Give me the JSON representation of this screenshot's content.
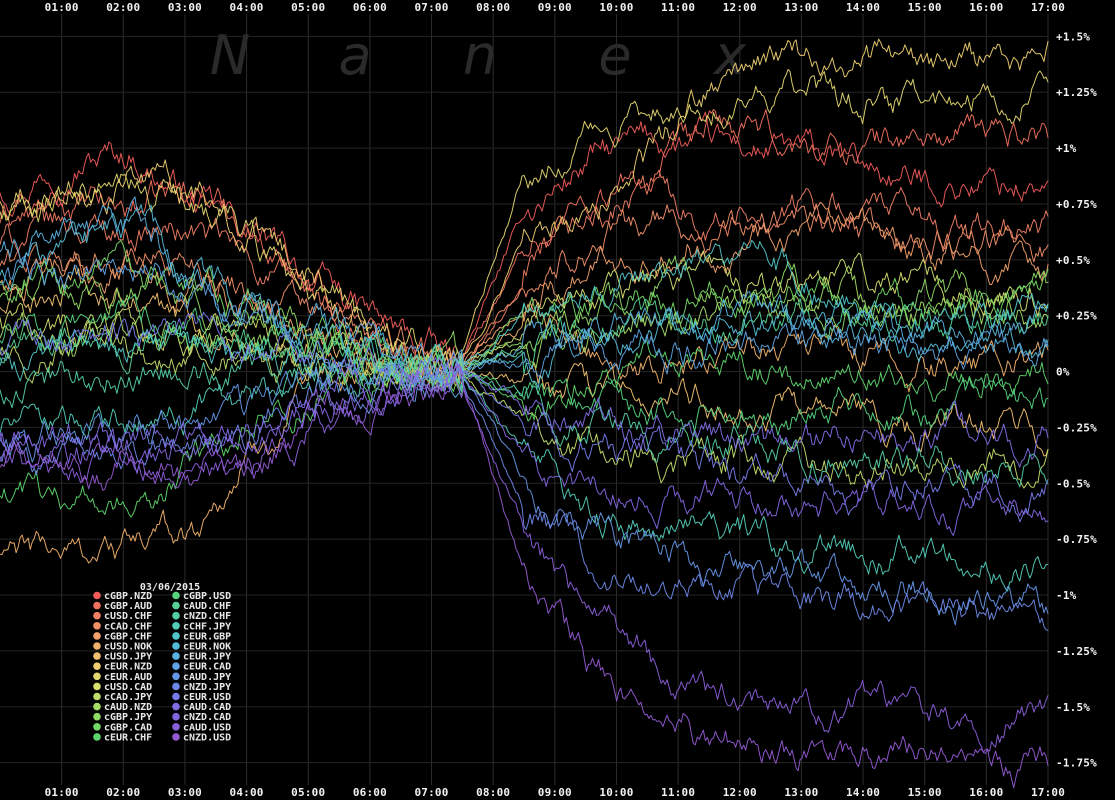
{
  "chart_data": {
    "type": "line",
    "title": "",
    "watermark": "Nanex",
    "date": "03/06/2015",
    "x": [
      "01:00",
      "02:00",
      "03:00",
      "04:00",
      "05:00",
      "06:00",
      "07:00",
      "08:00",
      "09:00",
      "10:00",
      "11:00",
      "12:00",
      "13:00",
      "14:00",
      "15:00",
      "16:00",
      "17:00"
    ],
    "y_ticks": [
      "+1.5%",
      "+1.25%",
      "+1%",
      "+0.75%",
      "+0.5%",
      "+0.25%",
      "0%",
      "-0.25%",
      "-0.5%",
      "-0.75%",
      "-1%",
      "-1.25%",
      "-1.5%",
      "-1.75%"
    ],
    "xlim": [
      "00:00",
      "17:00"
    ],
    "ylim": [
      -1.85,
      1.6
    ],
    "grid": true,
    "legend_placement": "bottom-left",
    "series": [
      {
        "name": "cGBP.NZD",
        "color": "#ef5b5b",
        "values": [
          0.82,
          0.95,
          0.98,
          0.75,
          0.58,
          0.37,
          0.18,
          0.03,
          0.7,
          0.95,
          1.03,
          1.0,
          0.98,
          0.92,
          0.84,
          0.85,
          0.82
        ]
      },
      {
        "name": "cGBP.AUD",
        "color": "#f0705e",
        "values": [
          0.68,
          0.72,
          0.73,
          0.82,
          0.62,
          0.32,
          0.14,
          0.02,
          0.55,
          0.78,
          0.86,
          1.1,
          1.0,
          1.0,
          1.04,
          1.06,
          1.08
        ]
      },
      {
        "name": "cUSD.CHF",
        "color": "#ef7e65",
        "values": [
          0.58,
          0.65,
          0.64,
          0.62,
          0.46,
          0.28,
          0.1,
          0.0,
          0.35,
          0.66,
          0.8,
          0.68,
          0.73,
          0.75,
          0.67,
          0.63,
          0.63
        ]
      },
      {
        "name": "cCAD.CHF",
        "color": "#f08e68",
        "values": [
          0.48,
          0.5,
          0.52,
          0.5,
          0.36,
          0.22,
          0.08,
          0.0,
          0.4,
          0.58,
          0.68,
          0.62,
          0.65,
          0.62,
          0.58,
          0.55,
          0.56
        ]
      },
      {
        "name": "cGBP.CHF",
        "color": "#f0a06a",
        "values": [
          0.4,
          0.42,
          0.45,
          0.38,
          0.3,
          0.18,
          0.06,
          0.0,
          0.3,
          0.48,
          0.56,
          0.6,
          0.66,
          0.58,
          0.5,
          0.48,
          0.5
        ]
      },
      {
        "name": "cUSD.NOK",
        "color": "#f0b06c",
        "values": [
          -0.82,
          -0.8,
          -0.78,
          -0.7,
          -0.3,
          -0.1,
          0.05,
          0.0,
          0.2,
          0.1,
          0.05,
          0.08,
          0.15,
          0.08,
          0.0,
          0.05,
          0.05
        ]
      },
      {
        "name": "cUSD.JPY",
        "color": "#f0c06f",
        "values": [
          0.28,
          0.33,
          0.3,
          0.22,
          0.18,
          0.1,
          0.04,
          0.0,
          -0.05,
          -0.12,
          -0.15,
          -0.1,
          -0.18,
          -0.22,
          -0.26,
          -0.2,
          -0.25
        ]
      },
      {
        "name": "cEUR.NZD",
        "color": "#eccd70",
        "values": [
          0.75,
          0.88,
          0.87,
          0.8,
          0.6,
          0.4,
          0.15,
          0.03,
          0.58,
          0.72,
          0.98,
          1.3,
          1.4,
          1.38,
          1.36,
          1.38,
          1.42
        ]
      },
      {
        "name": "cEUR.AUD",
        "color": "#e2d66f",
        "values": [
          0.7,
          0.78,
          0.8,
          0.78,
          0.55,
          0.32,
          0.12,
          0.02,
          0.9,
          1.05,
          1.18,
          1.25,
          1.28,
          1.2,
          1.22,
          1.24,
          1.28
        ]
      },
      {
        "name": "cUSD.CAD",
        "color": "#d5de6e",
        "values": [
          0.22,
          0.2,
          0.18,
          0.15,
          0.12,
          0.06,
          0.02,
          0.0,
          0.2,
          0.32,
          0.4,
          0.42,
          0.38,
          0.45,
          0.4,
          0.38,
          0.36
        ]
      },
      {
        "name": "cCAD.JPY",
        "color": "#c0dd6a",
        "values": [
          0.05,
          0.1,
          0.08,
          0.04,
          0.02,
          0.0,
          -0.02,
          0.0,
          -0.2,
          -0.35,
          -0.38,
          -0.4,
          -0.42,
          -0.45,
          -0.4,
          -0.38,
          -0.4
        ]
      },
      {
        "name": "cAUD.NZD",
        "color": "#a6dc66",
        "values": [
          0.12,
          0.14,
          0.14,
          0.12,
          0.1,
          0.06,
          0.02,
          0.0,
          0.1,
          0.18,
          0.22,
          0.25,
          0.3,
          0.32,
          0.28,
          0.26,
          0.3
        ]
      },
      {
        "name": "cGBP.JPY",
        "color": "#8ed966",
        "values": [
          0.3,
          0.36,
          0.4,
          0.32,
          0.22,
          0.12,
          0.05,
          0.0,
          0.12,
          0.28,
          0.34,
          0.36,
          0.4,
          0.3,
          0.32,
          0.3,
          0.34
        ]
      },
      {
        "name": "cGBP.CAD",
        "color": "#74d766",
        "values": [
          0.36,
          0.42,
          0.44,
          0.38,
          0.26,
          0.16,
          0.06,
          0.0,
          0.24,
          0.3,
          0.36,
          0.32,
          0.36,
          0.34,
          0.3,
          0.32,
          0.34
        ]
      },
      {
        "name": "cEUR.CHF",
        "color": "#5ed46d",
        "values": [
          -0.6,
          -0.55,
          -0.62,
          -0.4,
          -0.2,
          -0.08,
          0.0,
          0.0,
          -0.1,
          -0.04,
          0.05,
          0.06,
          0.0,
          0.03,
          -0.02,
          0.0,
          -0.02
        ]
      },
      {
        "name": "cGBP.USD",
        "color": "#55d37f",
        "values": [
          0.18,
          0.22,
          0.25,
          0.2,
          0.14,
          0.08,
          0.02,
          0.0,
          -0.1,
          -0.2,
          -0.22,
          -0.18,
          -0.2,
          -0.15,
          -0.18,
          -0.12,
          -0.14
        ]
      },
      {
        "name": "cAUD.CHF",
        "color": "#55d293",
        "values": [
          0.1,
          0.14,
          0.16,
          0.12,
          0.08,
          0.04,
          0.02,
          0.0,
          0.15,
          0.22,
          0.2,
          0.18,
          0.25,
          0.28,
          0.22,
          0.2,
          0.24
        ]
      },
      {
        "name": "cNZD.CHF",
        "color": "#54cfa5",
        "values": [
          -0.05,
          -0.02,
          0.0,
          0.02,
          0.02,
          0.0,
          0.0,
          0.0,
          -0.12,
          -0.2,
          -0.28,
          -0.3,
          -0.35,
          -0.36,
          -0.38,
          -0.42,
          -0.4
        ]
      },
      {
        "name": "cCHF.JPY",
        "color": "#52cbb7",
        "values": [
          -0.25,
          -0.26,
          -0.22,
          -0.16,
          -0.1,
          -0.04,
          -0.02,
          0.0,
          -0.35,
          -0.6,
          -0.7,
          -0.72,
          -0.78,
          -0.8,
          -0.82,
          -0.85,
          -0.88
        ]
      },
      {
        "name": "cEUR.GBP",
        "color": "#52c5c8",
        "values": [
          0.05,
          0.08,
          0.12,
          0.1,
          0.06,
          0.02,
          0.0,
          0.0,
          0.25,
          0.35,
          0.5,
          0.55,
          0.45,
          0.3,
          0.18,
          0.22,
          0.25
        ]
      },
      {
        "name": "cEUR.NOK",
        "color": "#54bcd6",
        "values": [
          0.45,
          0.52,
          0.65,
          0.4,
          0.24,
          0.12,
          0.04,
          0.0,
          0.05,
          0.12,
          0.15,
          0.2,
          0.22,
          0.18,
          0.1,
          0.14,
          0.12
        ]
      },
      {
        "name": "cEUR.JPY",
        "color": "#58b1df",
        "values": [
          0.55,
          0.6,
          0.62,
          0.42,
          0.28,
          0.14,
          0.05,
          0.0,
          0.1,
          0.18,
          0.22,
          0.25,
          0.22,
          0.2,
          0.16,
          0.18,
          0.2
        ]
      },
      {
        "name": "cEUR.CAD",
        "color": "#5ea3e3",
        "values": [
          0.4,
          0.46,
          0.5,
          0.35,
          0.22,
          0.1,
          0.04,
          0.0,
          0.05,
          0.1,
          0.14,
          0.1,
          0.12,
          0.15,
          0.1,
          0.12,
          0.1
        ]
      },
      {
        "name": "cAUD.JPY",
        "color": "#6595e5",
        "values": [
          -0.3,
          -0.28,
          -0.25,
          -0.3,
          -0.2,
          -0.1,
          -0.04,
          0.0,
          -0.5,
          -0.65,
          -0.8,
          -0.88,
          -0.92,
          -0.95,
          -0.98,
          -1.0,
          -1.05
        ]
      },
      {
        "name": "cNZD.JPY",
        "color": "#6d87e6",
        "values": [
          -0.38,
          -0.36,
          -0.32,
          -0.28,
          -0.22,
          -0.12,
          -0.05,
          0.0,
          -0.6,
          -0.82,
          -0.95,
          -1.0,
          -1.02,
          -1.05,
          -1.08,
          -1.12,
          -1.16
        ]
      },
      {
        "name": "cEUR.USD",
        "color": "#767ae6",
        "values": [
          0.1,
          0.12,
          0.15,
          0.14,
          0.1,
          0.05,
          0.02,
          0.0,
          -0.2,
          -0.32,
          -0.4,
          -0.45,
          -0.52,
          -0.55,
          -0.5,
          -0.52,
          -0.55
        ]
      },
      {
        "name": "cAUD.CAD",
        "color": "#7d6ee3",
        "values": [
          -0.28,
          -0.3,
          -0.3,
          -0.28,
          -0.22,
          -0.12,
          -0.05,
          0.0,
          -0.15,
          -0.25,
          -0.3,
          -0.32,
          -0.34,
          -0.3,
          -0.32,
          -0.28,
          -0.3
        ]
      },
      {
        "name": "cNZD.CAD",
        "color": "#8365df",
        "values": [
          -0.32,
          -0.34,
          -0.35,
          -0.36,
          -0.28,
          -0.16,
          -0.06,
          0.0,
          -0.4,
          -0.5,
          -0.55,
          -0.58,
          -0.6,
          -0.62,
          -0.58,
          -0.62,
          -0.6
        ]
      },
      {
        "name": "cAUD.USD",
        "color": "#8a5ed8",
        "values": [
          -0.42,
          -0.4,
          -0.38,
          -0.45,
          -0.35,
          -0.2,
          -0.08,
          0.0,
          -0.7,
          -1.1,
          -1.3,
          -1.45,
          -1.55,
          -1.5,
          -1.52,
          -1.56,
          -1.52
        ]
      },
      {
        "name": "cNZD.USD",
        "color": "#925ad2",
        "values": [
          -0.45,
          -0.44,
          -0.42,
          -0.5,
          -0.4,
          -0.24,
          -0.1,
          0.0,
          -0.9,
          -1.35,
          -1.55,
          -1.65,
          -1.72,
          -1.7,
          -1.72,
          -1.74,
          -1.78
        ]
      }
    ]
  }
}
